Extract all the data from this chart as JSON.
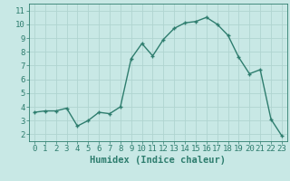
{
  "x": [
    0,
    1,
    2,
    3,
    4,
    5,
    6,
    7,
    8,
    9,
    10,
    11,
    12,
    13,
    14,
    15,
    16,
    17,
    18,
    19,
    20,
    21,
    22,
    23
  ],
  "y": [
    3.6,
    3.7,
    3.7,
    3.9,
    2.6,
    3.0,
    3.6,
    3.5,
    4.0,
    7.5,
    8.6,
    7.7,
    8.9,
    9.7,
    10.1,
    10.2,
    10.5,
    10.0,
    9.2,
    7.6,
    6.4,
    6.7,
    3.1,
    1.9
  ],
  "line_color": "#2e7d6e",
  "marker": "+",
  "bg_color": "#c8e8e5",
  "grid_color": "#b0d4d0",
  "xlabel": "Humidex (Indice chaleur)",
  "xlim": [
    -0.5,
    23.5
  ],
  "ylim": [
    1.5,
    11.5
  ],
  "yticks": [
    2,
    3,
    4,
    5,
    6,
    7,
    8,
    9,
    10,
    11
  ],
  "xticks": [
    0,
    1,
    2,
    3,
    4,
    5,
    6,
    7,
    8,
    9,
    10,
    11,
    12,
    13,
    14,
    15,
    16,
    17,
    18,
    19,
    20,
    21,
    22,
    23
  ],
  "axis_label_color": "#2e7d6e",
  "tick_color": "#2e7d6e",
  "border_color": "#2e7d6e",
  "xlabel_fontsize": 7.5,
  "tick_fontsize": 6.5,
  "linewidth": 1.0,
  "markersize": 3.5,
  "markeredgewidth": 1.0
}
